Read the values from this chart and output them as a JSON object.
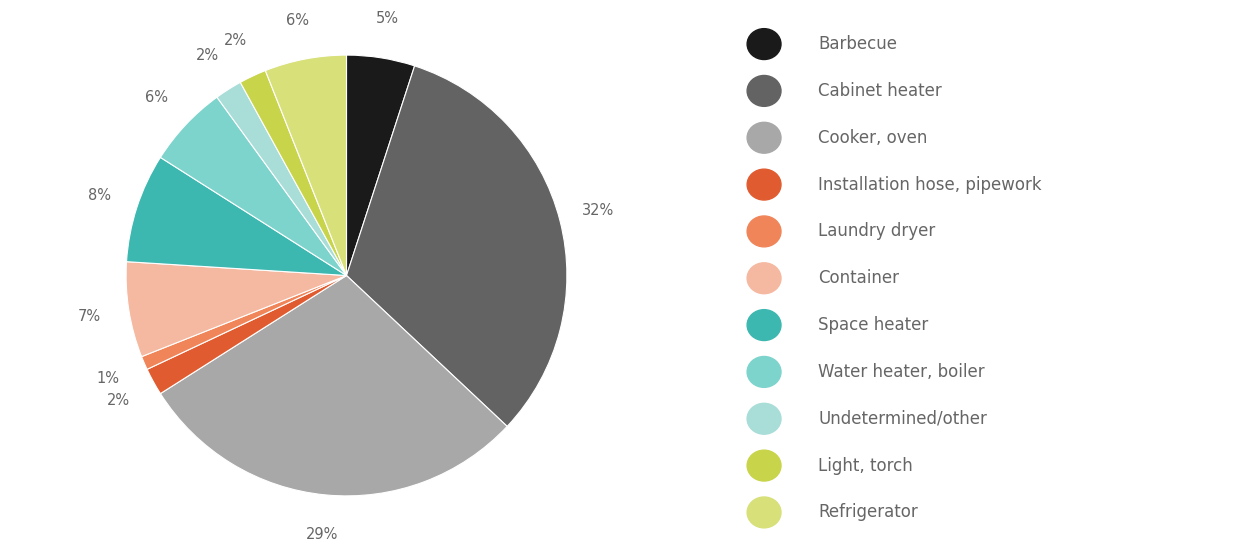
{
  "labels": [
    "Barbecue",
    "Cabinet heater",
    "Cooker, oven",
    "Installation hose, pipework",
    "Laundry dryer",
    "Container",
    "Space heater",
    "Water heater, boiler",
    "Undetermined/other",
    "Light, torch",
    "Refrigerator"
  ],
  "values": [
    5,
    32,
    29,
    2,
    1,
    7,
    8,
    6,
    2,
    2,
    6
  ],
  "colors": [
    "#1a1a1a",
    "#636363",
    "#a8a8a8",
    "#e05c30",
    "#f0855a",
    "#f5b8a0",
    "#3cb8b0",
    "#7dd4cc",
    "#a8ddd8",
    "#c8d44a",
    "#d8e07a"
  ],
  "pct_labels": [
    "5%",
    "32%",
    "29%",
    "2%",
    "1%",
    "7%",
    "8%",
    "6%",
    "2%",
    "2%",
    "6%"
  ],
  "background_color": "#ffffff",
  "text_color": "#666666",
  "label_fontsize": 10.5,
  "legend_fontsize": 12
}
